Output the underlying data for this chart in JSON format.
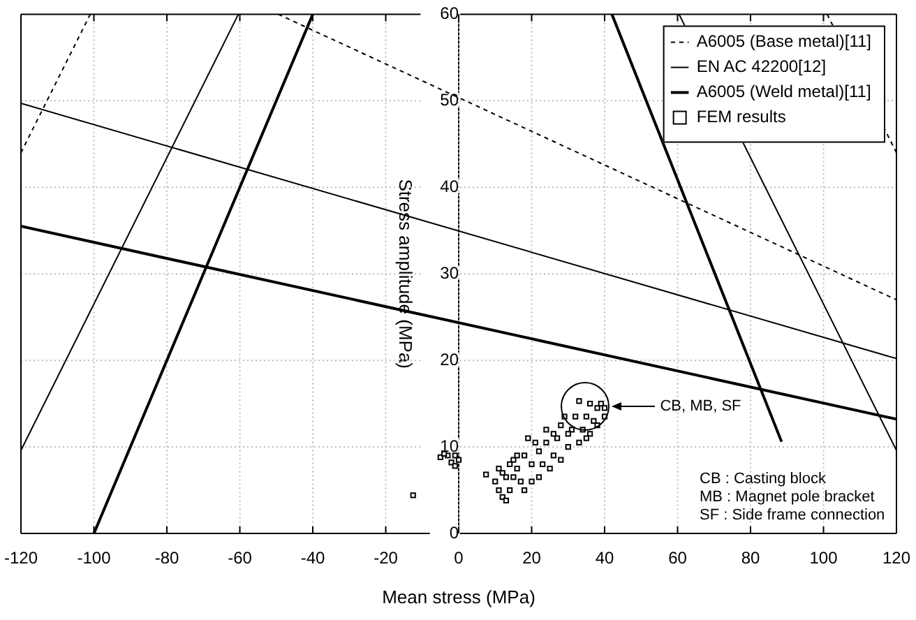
{
  "chart_data": {
    "type": "line",
    "xlabel": "Mean stress (MPa)",
    "ylabel": "Stress amplitude (MPa)",
    "xlim": [
      -120,
      120
    ],
    "xticks": [
      -120,
      -100,
      -80,
      -60,
      -40,
      -20,
      0,
      20,
      40,
      60,
      80,
      100,
      120
    ],
    "ylim": [
      0,
      60
    ],
    "yticks": [
      0,
      10,
      20,
      30,
      40,
      50,
      60
    ],
    "grid": true,
    "legend": "top right",
    "series": [
      {
        "name": "A6005 (Base metal)[11]",
        "color": "#000000",
        "line_style": "dashed",
        "marker": "none",
        "x": [
          -49.5,
          120,
          null,
          -120,
          -101,
          null,
          101,
          120
        ],
        "values": [
          60,
          27,
          null,
          44,
          60,
          null,
          60,
          44
        ]
      },
      {
        "name": "EN AC 42200[12]",
        "color": "#000000",
        "line_style": "solid",
        "marker": "none",
        "x": [
          -120,
          120,
          null,
          -120,
          -60.4,
          null,
          60.4,
          120
        ],
        "values": [
          49.7,
          20.2,
          null,
          9.6,
          60,
          null,
          60,
          9.6
        ]
      },
      {
        "name": "A6005 (Weld metal)[11]",
        "color": "#000000",
        "line_style": "solid",
        "marker": "none",
        "x": [
          -120,
          120,
          null,
          -100,
          -40,
          null,
          42,
          88.5
        ],
        "values": [
          35.5,
          13.2,
          null,
          0,
          60,
          null,
          60,
          10.6
        ]
      },
      {
        "name": "FEM results",
        "type": "scatter",
        "color": "#000000",
        "marker": "square",
        "x": [
          -12.5,
          -3,
          -1,
          -5,
          -2,
          0,
          -4,
          -1,
          7.5,
          10,
          11,
          12,
          13,
          14,
          15,
          16,
          13,
          12,
          15,
          16,
          19,
          17,
          18,
          20,
          22,
          20,
          22,
          24,
          25,
          26,
          27,
          28,
          28,
          30,
          31,
          32,
          33,
          34,
          35,
          36,
          37,
          38,
          38,
          39,
          40,
          36,
          33,
          29,
          24,
          21,
          18,
          14,
          11,
          23,
          26,
          30,
          35,
          40
        ],
        "values": [
          4.4,
          9,
          9,
          8.8,
          8.2,
          8.5,
          9.2,
          7.8,
          6.8,
          6,
          5,
          4.2,
          3.8,
          5,
          6.5,
          7.5,
          6.5,
          7,
          8.5,
          9,
          11,
          6,
          5,
          6,
          6.5,
          8,
          9.5,
          10.5,
          7.5,
          9,
          11,
          12.5,
          8.5,
          10,
          12,
          13.5,
          10.5,
          12,
          13.5,
          11.5,
          13,
          12.5,
          14.5,
          15,
          13.5,
          15,
          15.3,
          13.5,
          12,
          10.5,
          9,
          8,
          7.5,
          8,
          11.5,
          11.5,
          11,
          14.5
        ]
      }
    ],
    "annotations": [
      "CB, MB, SF",
      "CB : Casting block",
      "MB : Magnet pole bracket",
      "SF : Side frame connection"
    ]
  }
}
